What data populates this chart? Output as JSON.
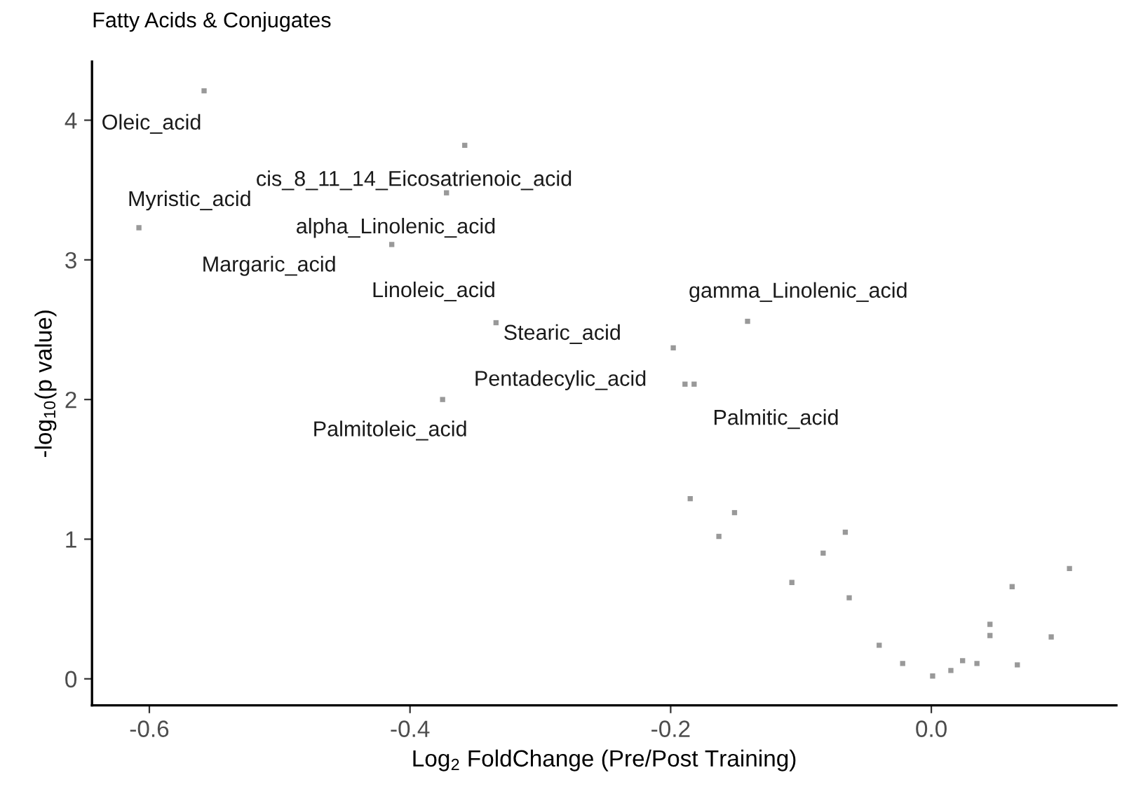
{
  "chart_data": {
    "type": "scatter",
    "title": "Fatty Acids & Conjugates",
    "xlabel": "Log$_{2}$ FoldChange (Pre/Post Training)",
    "ylabel": "-log$_{10}$(p value)",
    "xlim": [
      -0.644,
      0.142
    ],
    "ylim": [
      -0.19,
      4.42
    ],
    "xticks": [
      {
        "value": -0.6,
        "label": "-0.6"
      },
      {
        "value": -0.4,
        "label": "-0.4"
      },
      {
        "value": -0.2,
        "label": "-0.2"
      },
      {
        "value": 0.0,
        "label": "0.0"
      }
    ],
    "yticks": [
      0,
      1,
      2,
      3,
      4
    ],
    "grid": false,
    "marker": "square",
    "series": [
      {
        "color": "#999999",
        "x": [
          -0.558,
          -0.608,
          -0.358,
          -0.372,
          -0.414,
          -0.334,
          -0.375,
          -0.141,
          -0.198,
          -0.189,
          -0.182,
          -0.185,
          -0.163,
          -0.151,
          -0.107,
          -0.083,
          -0.066,
          -0.063,
          -0.04,
          -0.022,
          0.001,
          0.015,
          0.024,
          0.035,
          0.045,
          0.045,
          0.062,
          0.066,
          0.092,
          0.106
        ],
        "values": [
          4.21,
          3.23,
          3.82,
          3.48,
          3.11,
          2.55,
          2.0,
          2.56,
          2.37,
          2.11,
          2.11,
          1.29,
          1.02,
          1.19,
          0.69,
          0.9,
          1.05,
          0.58,
          0.24,
          0.11,
          0.02,
          0.06,
          0.13,
          0.11,
          0.39,
          0.31,
          0.66,
          0.1,
          0.3,
          0.79
        ]
      }
    ],
    "annotations": [
      {
        "text": "Oleic_acid",
        "x": -0.558,
        "y": 4.21
      },
      {
        "text": "Myristic_acid",
        "x": -0.608,
        "y": 3.23
      },
      {
        "text": "cis_8_11_14_Eicosatrienoic_acid",
        "x": -0.358,
        "y": 3.82
      },
      {
        "text": "alpha_Linolenic_acid",
        "x": -0.372,
        "y": 3.48
      },
      {
        "text": "Margaric_acid",
        "x": -0.414,
        "y": 3.11
      },
      {
        "text": "Linoleic_acid",
        "x": -0.334,
        "y": 2.55
      },
      {
        "text": "Palmitoleic_acid",
        "x": -0.375,
        "y": 2.0
      },
      {
        "text": "gamma_Linolenic_acid",
        "x": -0.141,
        "y": 2.56
      },
      {
        "text": "Stearic_acid",
        "x": -0.198,
        "y": 2.37
      },
      {
        "text": "Pentadecylic_acid",
        "x": -0.189,
        "y": 2.11
      },
      {
        "text": "Palmitic_acid",
        "x": -0.182,
        "y": 2.11
      }
    ]
  }
}
